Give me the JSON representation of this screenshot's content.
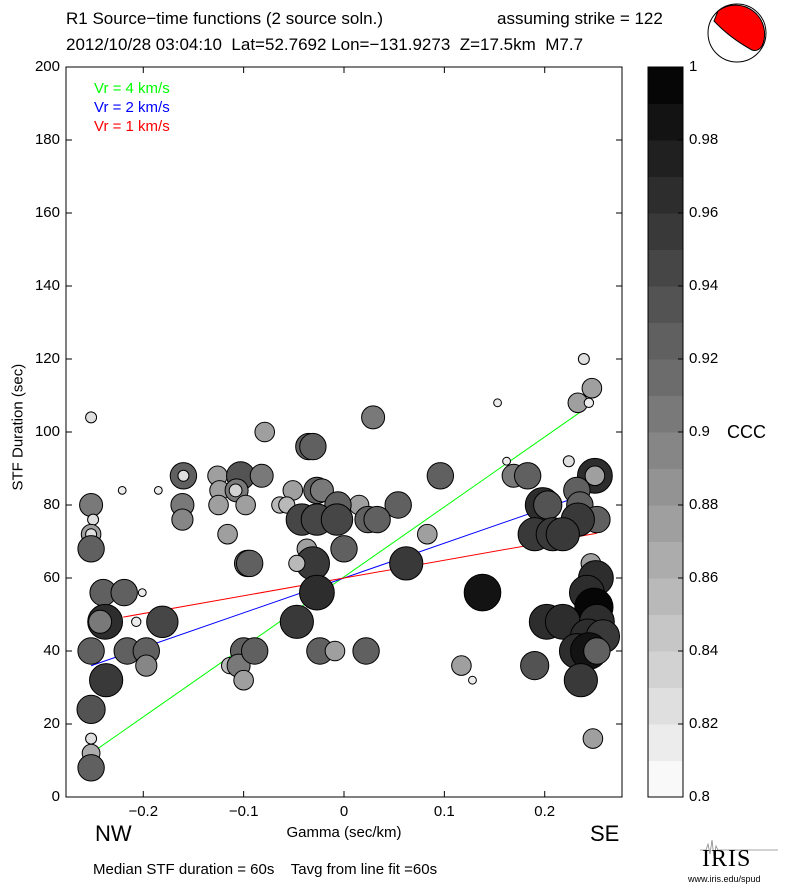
{
  "header": {
    "title": "R1 Source−time functions (2 source soln.)",
    "strike_text": "assuming strike = 122",
    "event_line": "2012/10/28 03:04:10  Lat=52.7692 Lon=−131.9273  Z=17.5km  M7.7"
  },
  "footer": {
    "summary": "Median STF duration = 60s    Tavg from line fit =60s",
    "logo_text": "IRIS",
    "logo_url_text": "www.iris.edu/spud"
  },
  "direction_labels": {
    "left": "NW",
    "right": "SE"
  },
  "colors": {
    "vr4": "#00ff00",
    "vr2": "#0000ff",
    "vr1": "#ff0000",
    "beachball": "#ff0000"
  },
  "chart_data": {
    "type": "scatter",
    "xlabel": "Gamma (sec/km)",
    "ylabel": "STF Duration (sec)",
    "xlim": [
      -0.277,
      0.277
    ],
    "ylim": [
      0,
      200
    ],
    "xticks": [
      -0.2,
      -0.1,
      0,
      0.1,
      0.2
    ],
    "xtick_labels": [
      "−0.2",
      "−0.1",
      "0",
      "0.1",
      "0.2"
    ],
    "yticks": [
      0,
      20,
      40,
      60,
      80,
      100,
      120,
      140,
      160,
      180,
      200
    ],
    "ytick_labels": [
      "0",
      "20",
      "40",
      "60",
      "80",
      "100",
      "120",
      "140",
      "160",
      "180",
      "200"
    ],
    "grid": false,
    "legend_position": "top-left",
    "fit_lines": [
      {
        "label": "Vr = 4 km/s",
        "color": "#00ff00",
        "slope": 191.8,
        "intercept": 60.3,
        "x_range": [
          -0.252,
          0.238
        ]
      },
      {
        "label": "Vr = 2 km/s",
        "color": "#0000ff",
        "slope": 95.4,
        "intercept": 60.0,
        "x_range": [
          -0.252,
          0.248
        ]
      },
      {
        "label": "Vr = 1 km/s",
        "color": "#ff0000",
        "slope": 48.7,
        "intercept": 60.0,
        "x_range": [
          -0.22,
          0.252
        ]
      }
    ],
    "colorbar": {
      "label": "CCC",
      "range": [
        0.8,
        1.0
      ],
      "ticks": [
        0.8,
        0.82,
        0.84,
        0.86,
        0.88,
        0.9,
        0.92,
        0.94,
        0.96,
        0.98,
        1
      ],
      "tick_labels": [
        "0.8",
        "0.82",
        "0.84",
        "0.86",
        "0.88",
        "0.9",
        "0.92",
        "0.94",
        "0.96",
        "0.98",
        "1"
      ]
    },
    "points_fields": [
      "gamma",
      "duration",
      "ccc"
    ],
    "points": [
      [
        -0.252,
        104,
        0.83
      ],
      [
        -0.252,
        80,
        0.9
      ],
      [
        -0.25,
        76,
        0.83
      ],
      [
        -0.252,
        72,
        0.88
      ],
      [
        -0.252,
        72,
        0.83
      ],
      [
        -0.252,
        68,
        0.92
      ],
      [
        -0.221,
        84,
        0.81
      ],
      [
        -0.185,
        84,
        0.81
      ],
      [
        -0.16,
        88,
        0.92
      ],
      [
        -0.16,
        88,
        0.83
      ],
      [
        -0.161,
        80,
        0.9
      ],
      [
        -0.161,
        76,
        0.89
      ],
      [
        -0.24,
        56,
        0.92
      ],
      [
        -0.219,
        56,
        0.92
      ],
      [
        -0.201,
        56,
        0.81
      ],
      [
        -0.238,
        48,
        0.97
      ],
      [
        -0.243,
        48,
        0.9
      ],
      [
        -0.207,
        48,
        0.82
      ],
      [
        -0.181,
        48,
        0.95
      ],
      [
        -0.252,
        40,
        0.92
      ],
      [
        -0.216,
        40,
        0.92
      ],
      [
        -0.197,
        40,
        0.92
      ],
      [
        -0.197,
        36,
        0.89
      ],
      [
        -0.237,
        32,
        0.96
      ],
      [
        -0.252,
        24,
        0.93
      ],
      [
        -0.252,
        16,
        0.83
      ],
      [
        -0.252,
        12,
        0.87
      ],
      [
        -0.252,
        8,
        0.92
      ],
      [
        -0.126,
        88,
        0.88
      ],
      [
        -0.103,
        88,
        0.93
      ],
      [
        -0.082,
        88,
        0.9
      ],
      [
        -0.124,
        84,
        0.88
      ],
      [
        -0.107,
        84,
        0.9
      ],
      [
        -0.108,
        84,
        0.84
      ],
      [
        -0.125,
        80,
        0.88
      ],
      [
        -0.098,
        80,
        0.88
      ],
      [
        -0.116,
        72,
        0.88
      ],
      [
        -0.096,
        64,
        0.92
      ],
      [
        -0.1,
        40,
        0.92
      ],
      [
        -0.114,
        36,
        0.86
      ],
      [
        -0.105,
        36,
        0.9
      ],
      [
        -0.1,
        32,
        0.88
      ],
      [
        -0.089,
        40,
        0.92
      ],
      [
        0.029,
        104,
        0.9
      ],
      [
        -0.079,
        100,
        0.88
      ],
      [
        -0.035,
        96,
        0.92
      ],
      [
        -0.031,
        96,
        0.92
      ],
      [
        -0.051,
        84,
        0.88
      ],
      [
        -0.027,
        84,
        0.92
      ],
      [
        -0.022,
        84,
        0.9
      ],
      [
        0.015,
        80,
        0.88
      ],
      [
        -0.006,
        80,
        0.92
      ],
      [
        0.054,
        80,
        0.92
      ],
      [
        -0.064,
        80,
        0.86
      ],
      [
        -0.057,
        80,
        0.86
      ],
      [
        -0.042,
        76,
        0.95
      ],
      [
        -0.027,
        76,
        0.95
      ],
      [
        -0.007,
        76,
        0.95
      ],
      [
        0.024,
        76,
        0.92
      ],
      [
        0.033,
        76,
        0.92
      ],
      [
        0.083,
        72,
        0.88
      ],
      [
        -0.094,
        64,
        0.92
      ],
      [
        -0.037,
        68,
        0.88
      ],
      [
        -0.031,
        64,
        0.96
      ],
      [
        -0.047,
        64,
        0.86
      ],
      [
        0,
        68,
        0.92
      ],
      [
        0.062,
        64,
        0.96
      ],
      [
        -0.027,
        56,
        0.97
      ],
      [
        -0.047,
        48,
        0.96
      ],
      [
        -0.024,
        40,
        0.92
      ],
      [
        -0.009,
        40,
        0.88
      ],
      [
        0.022,
        40,
        0.92
      ],
      [
        0.239,
        120,
        0.83
      ],
      [
        0.247,
        112,
        0.88
      ],
      [
        0.233,
        108,
        0.88
      ],
      [
        0.244,
        108,
        0.82
      ],
      [
        0.153,
        108,
        0.81
      ],
      [
        0.224,
        92,
        0.83
      ],
      [
        0.162,
        92,
        0.81
      ],
      [
        0.096,
        88,
        0.92
      ],
      [
        0.169,
        88,
        0.9
      ],
      [
        0.183,
        88,
        0.92
      ],
      [
        0.25,
        88,
        0.97
      ],
      [
        0.25,
        88,
        0.88
      ],
      [
        0.232,
        84,
        0.92
      ],
      [
        0.198,
        80,
        0.97
      ],
      [
        0.203,
        80,
        0.93
      ],
      [
        0.235,
        80,
        0.92
      ],
      [
        0.252,
        76,
        0.92
      ],
      [
        0.233,
        76,
        0.96
      ],
      [
        0.19,
        72,
        0.96
      ],
      [
        0.208,
        72,
        0.96
      ],
      [
        0.218,
        72,
        0.96
      ],
      [
        0.246,
        64,
        0.88
      ],
      [
        0.138,
        56,
        0.98
      ],
      [
        0.251,
        60,
        0.97
      ],
      [
        0.242,
        56,
        0.97
      ],
      [
        0.249,
        52,
        0.99
      ],
      [
        0.202,
        48,
        0.97
      ],
      [
        0.218,
        48,
        0.97
      ],
      [
        0.252,
        48,
        0.97
      ],
      [
        0.243,
        44,
        0.97
      ],
      [
        0.258,
        44,
        0.96
      ],
      [
        0.232,
        40,
        0.97
      ],
      [
        0.244,
        40,
        0.98
      ],
      [
        0.252,
        40,
        0.92
      ],
      [
        0.117,
        36,
        0.88
      ],
      [
        0.128,
        32,
        0.81
      ],
      [
        0.19,
        36,
        0.93
      ],
      [
        0.236,
        32,
        0.96
      ],
      [
        0.248,
        16,
        0.88
      ]
    ]
  }
}
